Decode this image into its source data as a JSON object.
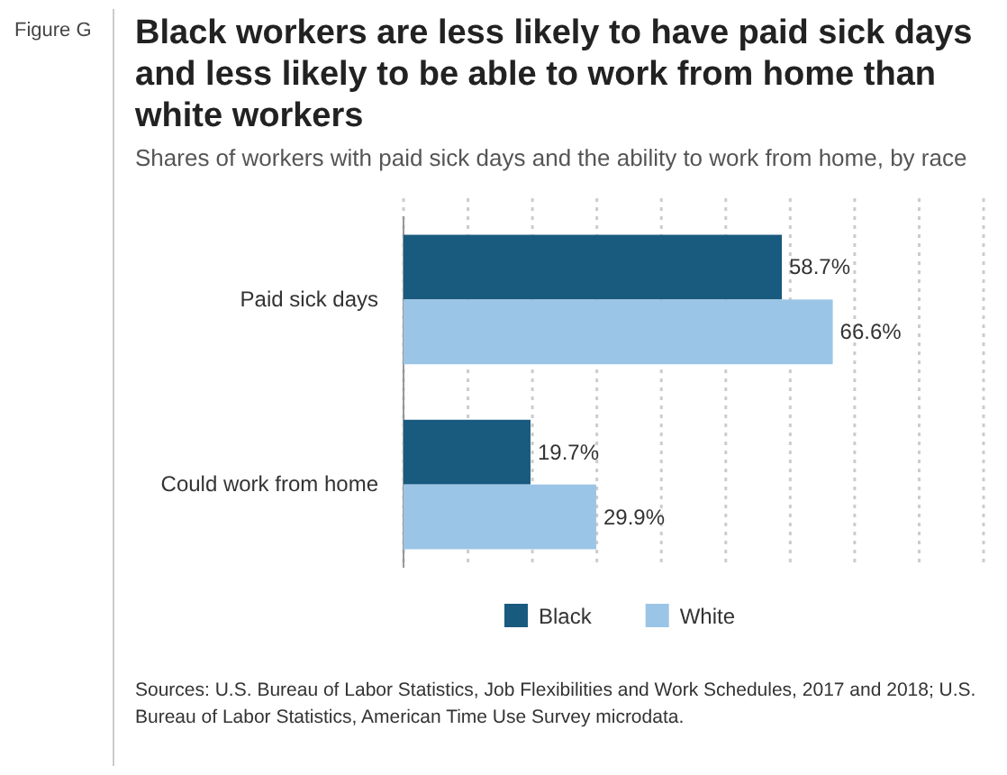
{
  "chart_data": {
    "type": "bar",
    "orientation": "horizontal",
    "title": "Black workers are less likely to have paid sick days and less likely to be able to work from home than white workers",
    "subtitle": "Shares of workers with paid sick days and the ability to work from home, by race",
    "categories": [
      "Paid sick days",
      "Could work from home"
    ],
    "series": [
      {
        "name": "Black",
        "color": "#195a7f",
        "values": [
          58.7,
          19.7
        ],
        "value_labels": [
          "58.7%",
          "19.7%"
        ]
      },
      {
        "name": "White",
        "color": "#9bc5e6",
        "values": [
          66.6,
          29.9
        ],
        "value_labels": [
          "66.6%",
          "29.9%"
        ]
      }
    ],
    "xlim": [
      0,
      90
    ],
    "xticks": [
      {
        "value": 0,
        "label": null
      },
      {
        "value": 10,
        "label": null
      },
      {
        "value": 20,
        "label": null
      },
      {
        "value": 30,
        "label": null
      },
      {
        "value": 40,
        "label": null
      },
      {
        "value": 50,
        "label": null
      },
      {
        "value": 60,
        "label": null
      },
      {
        "value": 70,
        "label": null
      },
      {
        "value": 80,
        "label": null
      },
      {
        "value": 90,
        "label": null
      }
    ],
    "tick_labels": "y",
    "grid": "x",
    "legend": "bottom",
    "annotations": [
      "Figure G",
      "Sources: U.S. Bureau of Labor Statistics, Job Flexibilities and Work Schedules, 2017 and 2018; U.S. Bureau of Labor Statistics, American Time Use Survey microdata."
    ]
  }
}
